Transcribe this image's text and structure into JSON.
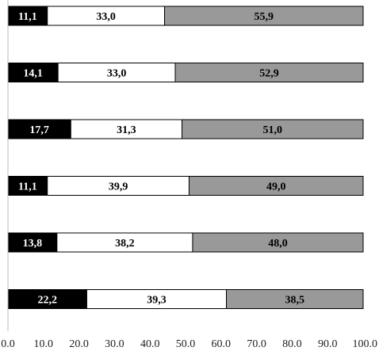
{
  "chart_data": {
    "type": "bar",
    "orientation": "horizontal",
    "stacked": true,
    "title": "",
    "xlabel": "",
    "ylabel": "",
    "xlim": [
      0,
      100
    ],
    "x_ticks": [
      "0.0",
      "10.0",
      "20.0",
      "30.0",
      "40.0",
      "50.0",
      "60.0",
      "70.0",
      "80.0",
      "90.0",
      "100.0"
    ],
    "x_tick_values": [
      0,
      10,
      20,
      30,
      40,
      50,
      60,
      70,
      80,
      90,
      100
    ],
    "grid": false,
    "legend": "none",
    "series": [
      {
        "color": "#000000",
        "text_color": "#ffffff",
        "values": [
          11.1,
          14.1,
          17.7,
          11.1,
          13.8,
          22.2
        ],
        "labels": [
          "11,1",
          "14,1",
          "17,7",
          "11,1",
          "13,8",
          "22,2"
        ]
      },
      {
        "color": "#ffffff",
        "text_color": "#000000",
        "values": [
          33.0,
          33.0,
          31.3,
          39.9,
          38.2,
          39.3
        ],
        "labels": [
          "33,0",
          "33,0",
          "31,3",
          "39,9",
          "38,2",
          "39,3"
        ]
      },
      {
        "color": "#999999",
        "text_color": "#000000",
        "values": [
          55.9,
          52.9,
          51.0,
          49.0,
          48.0,
          38.5
        ],
        "labels": [
          "55,9",
          "52,9",
          "51,0",
          "49,0",
          "48,0",
          "38,5"
        ]
      }
    ]
  }
}
